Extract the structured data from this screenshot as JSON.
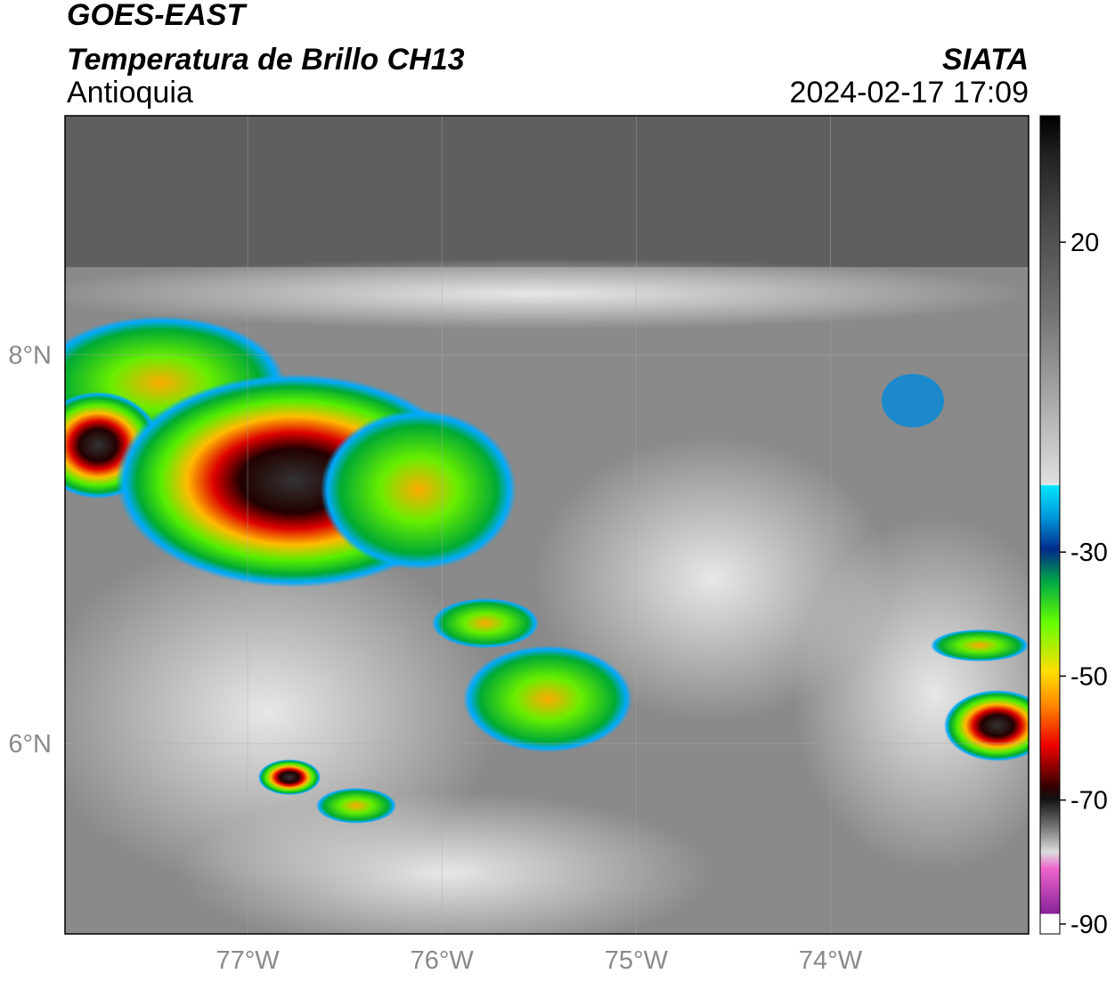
{
  "header": {
    "title": "GOES-EAST",
    "subtitle": "Temperatura de Brillo CH13",
    "region": "Antioquia",
    "source": "SIATA",
    "timestamp": "2024-02-17 17:09"
  },
  "map": {
    "lonlim": [
      -77.94,
      -72.98
    ],
    "latlim": [
      5.02,
      9.23
    ],
    "lon_ticks": [
      {
        "value": -77,
        "label": "77°W"
      },
      {
        "value": -76,
        "label": "76°W"
      },
      {
        "value": -75,
        "label": "75°W"
      },
      {
        "value": -74,
        "label": "74°W"
      }
    ],
    "lat_ticks": [
      {
        "value": 8,
        "label": "8°N"
      },
      {
        "value": 6,
        "label": "6°N"
      }
    ]
  },
  "colorbar": {
    "lim": [
      -91.6,
      40.4
    ],
    "ticks": [
      20,
      -30,
      -50,
      -70,
      -90
    ]
  }
}
